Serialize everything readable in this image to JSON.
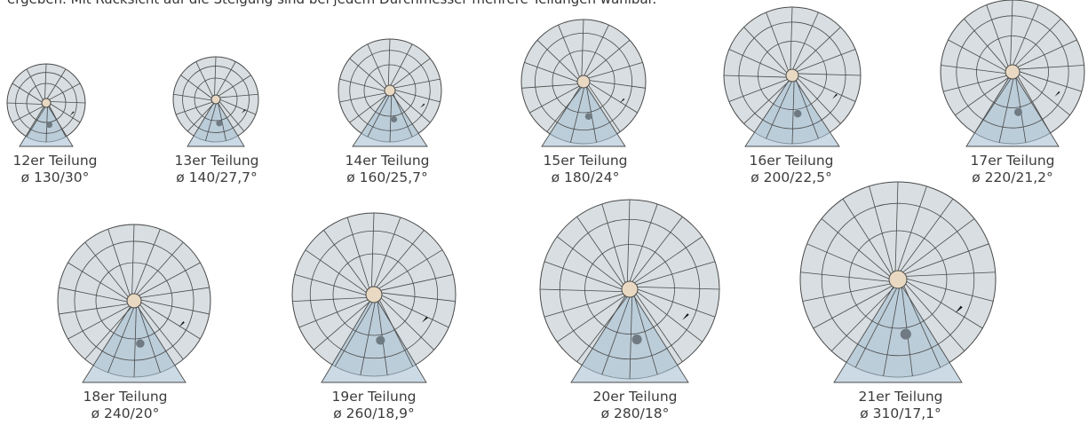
{
  "intro_text": "ergeben. Mit Rücksicht auf die Steigung sind bei jedem Durchmesser mehrere Teilungen wählbar.",
  "colors": {
    "disc": "#d8dee1",
    "line": "#4a4a4a",
    "zone": "#a9c2d3",
    "column": "#e9d9c2",
    "dot": "#6f7a82"
  },
  "diagrams": [
    {
      "teilung": 12,
      "name": "12er Teilung",
      "spec": "ø 130/30°"
    },
    {
      "teilung": 13,
      "name": "13er Teilung",
      "spec": "ø 140/27,7°"
    },
    {
      "teilung": 14,
      "name": "14er Teilung",
      "spec": "ø 160/25,7°"
    },
    {
      "teilung": 15,
      "name": "15er Teilung",
      "spec": "ø 180/24°"
    },
    {
      "teilung": 16,
      "name": "16er Teilung",
      "spec": "ø 200/22,5°"
    },
    {
      "teilung": 17,
      "name": "17er Teilung",
      "spec": "ø 220/21,2°"
    },
    {
      "teilung": 18,
      "name": "18er Teilung",
      "spec": "ø 240/20°"
    },
    {
      "teilung": 19,
      "name": "19er Teilung",
      "spec": "ø 260/18,9°"
    },
    {
      "teilung": 20,
      "name": "20er Teilung",
      "spec": "ø 280/18°"
    },
    {
      "teilung": 21,
      "name": "21er Teilung",
      "spec": "ø 310/17,1°"
    }
  ]
}
